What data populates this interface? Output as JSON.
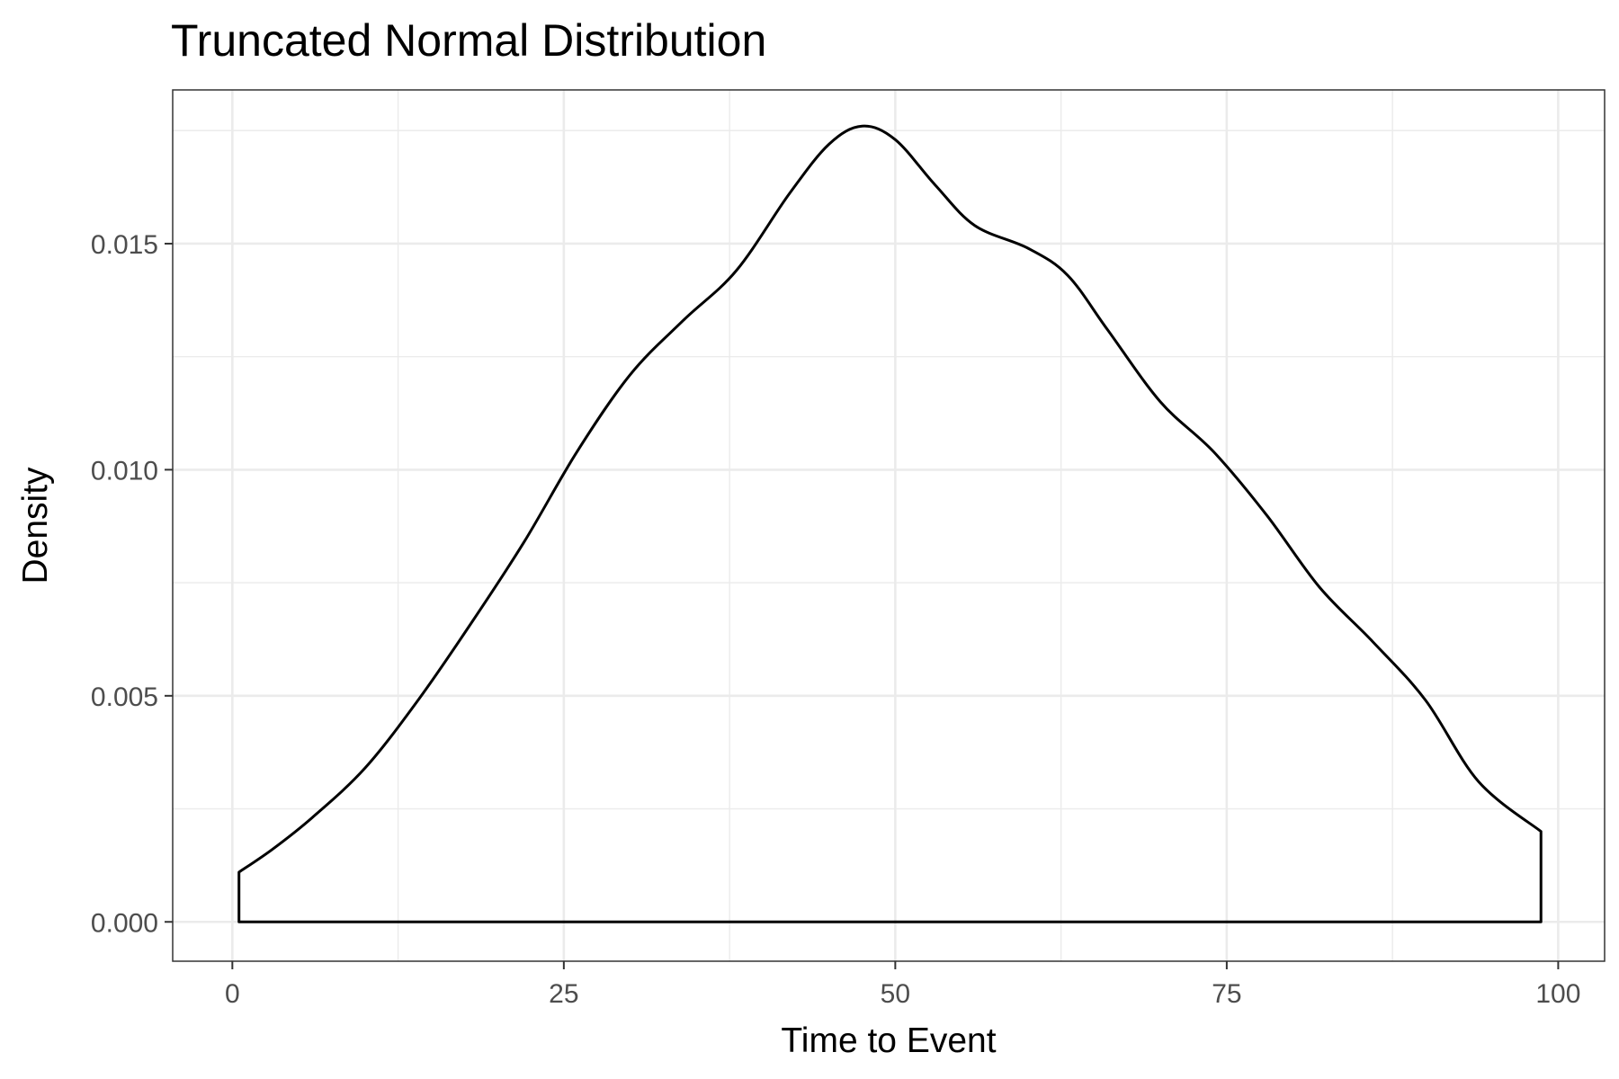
{
  "chart_data": {
    "type": "area",
    "title": "Truncated Normal Distribution",
    "xlabel": "Time to Event",
    "ylabel": "Density",
    "xlim": [
      -4.5,
      103.5
    ],
    "ylim": [
      -0.00087,
      0.0184
    ],
    "x_ticks": [
      0,
      25,
      50,
      75,
      100
    ],
    "x_tick_labels": [
      "0",
      "25",
      "50",
      "75",
      "100"
    ],
    "y_ticks": [
      0,
      0.005,
      0.01,
      0.015
    ],
    "y_tick_labels": [
      "0.000",
      "0.005",
      "0.010",
      "0.015"
    ],
    "x_minor_ticks": [
      12.5,
      37.5,
      62.5,
      87.5
    ],
    "y_minor_ticks": [
      0.0025,
      0.0075,
      0.0125,
      0.0175
    ],
    "grid": true,
    "series": [
      {
        "x": [
          0.5,
          3,
          6,
          10,
          14,
          18,
          22,
          26,
          30,
          34,
          38,
          42,
          45,
          47.5,
          50,
          53,
          56,
          60,
          63,
          66,
          70,
          74,
          78,
          82,
          86,
          90,
          94,
          98.7
        ],
        "y": [
          0.0011,
          0.0016,
          0.0023,
          0.0034,
          0.0049,
          0.0066,
          0.0084,
          0.0104,
          0.0121,
          0.0133,
          0.0144,
          0.0161,
          0.0172,
          0.0176,
          0.0173,
          0.0163,
          0.0154,
          0.0149,
          0.0143,
          0.0131,
          0.0115,
          0.0104,
          0.009,
          0.0074,
          0.0062,
          0.0049,
          0.0031,
          0.002
        ]
      }
    ],
    "colors": {
      "line": "#000000",
      "grid": "#ebebeb",
      "background": "#ffffff"
    }
  }
}
